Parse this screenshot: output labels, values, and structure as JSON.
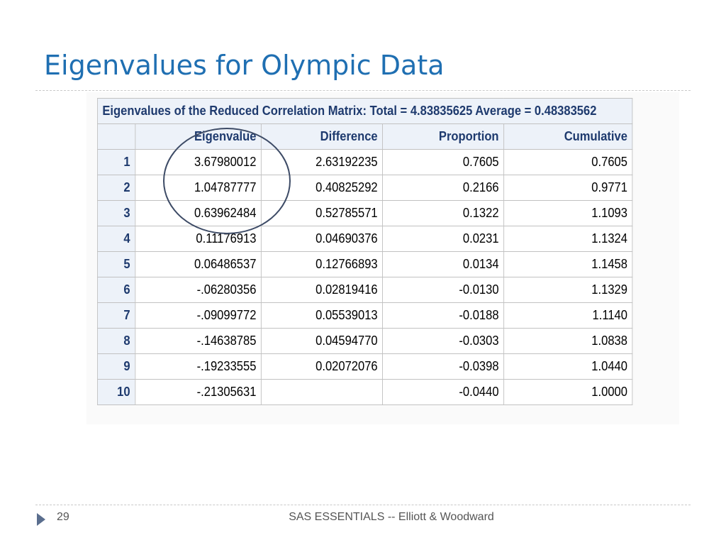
{
  "slide": {
    "title": "Eigenvalues for Olympic Data",
    "page_number": "29",
    "footer": "SAS ESSENTIALS -- Elliott & Woodward"
  },
  "table": {
    "title": "Eigenvalues of the Reduced Correlation Matrix: Total = 4.83835625 Average = 0.48383562",
    "columns": [
      "",
      "Eigenvalue",
      "Difference",
      "Proportion",
      "Cumulative"
    ],
    "rows": [
      {
        "n": "1",
        "eigenvalue": "3.67980012",
        "difference": "2.63192235",
        "proportion": "0.7605",
        "cumulative": "0.7605"
      },
      {
        "n": "2",
        "eigenvalue": "1.04787777",
        "difference": "0.40825292",
        "proportion": "0.2166",
        "cumulative": "0.9771"
      },
      {
        "n": "3",
        "eigenvalue": "0.63962484",
        "difference": "0.52785571",
        "proportion": "0.1322",
        "cumulative": "1.1093"
      },
      {
        "n": "4",
        "eigenvalue": "0.11176913",
        "difference": "0.04690376",
        "proportion": "0.0231",
        "cumulative": "1.1324"
      },
      {
        "n": "5",
        "eigenvalue": "0.06486537",
        "difference": "0.12766893",
        "proportion": "0.0134",
        "cumulative": "1.1458"
      },
      {
        "n": "6",
        "eigenvalue": "-.06280356",
        "difference": "0.02819416",
        "proportion": "-0.0130",
        "cumulative": "1.1329"
      },
      {
        "n": "7",
        "eigenvalue": "-.09099772",
        "difference": "0.05539013",
        "proportion": "-0.0188",
        "cumulative": "1.1140"
      },
      {
        "n": "8",
        "eigenvalue": "-.14638785",
        "difference": "0.04594770",
        "proportion": "-0.0303",
        "cumulative": "1.0838"
      },
      {
        "n": "9",
        "eigenvalue": "-.19233555",
        "difference": "0.02072076",
        "proportion": "-0.0398",
        "cumulative": "1.0440"
      },
      {
        "n": "10",
        "eigenvalue": "-.21305631",
        "difference": "",
        "proportion": "-0.0440",
        "cumulative": "1.0000"
      }
    ]
  },
  "colors": {
    "title": "#1f6fb2",
    "header_bg": "#edf2f9",
    "header_text": "#1e3a6e",
    "circle": "#3d4b66"
  },
  "icons": {
    "footer_bullet": "triangle-right-icon"
  }
}
